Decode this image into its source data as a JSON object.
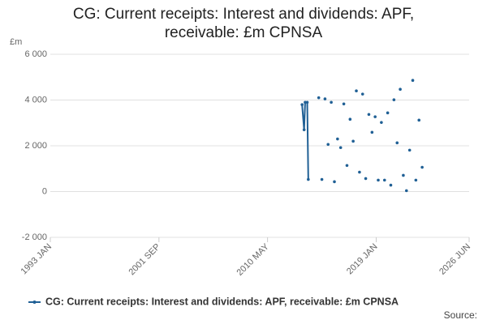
{
  "chart_data": {
    "type": "line",
    "title": "CG: Current receipts: Interest and dividends: APF, receivable: £m CPNSA",
    "y_unit": "£m",
    "source_label": "Source:",
    "x": [
      "2013 FEB",
      "2013 APR",
      "2013 MAY",
      "2013 JUL",
      "2013 AUG",
      "2013 SEP",
      "2014 JUN",
      "2014 JUL",
      "2014 SEP",
      "2014 OCT",
      "2014 DEC",
      "2015 JAN",
      "2015 MAR",
      "2015 APR",
      "2015 JUN",
      "2015 JUL",
      "2015 SEP",
      "2015 OCT",
      "2015 DEC",
      "2016 JAN",
      "2016 MAR",
      "2016 APR",
      "2016 JUN",
      "2016 JUL",
      "2016 SEP",
      "2016 OCT",
      "2016 DEC",
      "2017 JAN",
      "2017 MAR",
      "2017 APR",
      "2017 JUN",
      "2017 JUL",
      "2017 SEP",
      "2017 OCT",
      "2017 DEC",
      "2018 JAN",
      "2018 MAR",
      "2018 APR",
      "2018 JUN",
      "2018 JUL",
      "2018 SEP",
      "2018 OCT",
      "2018 DEC",
      "2019 JAN",
      "2019 MAR",
      "2019 APR",
      "2019 JUN",
      "2019 JUL",
      "2019 SEP",
      "2019 OCT",
      "2019 DEC",
      "2020 JAN",
      "2020 MAR",
      "2020 APR",
      "2020 JUN",
      "2020 JUL",
      "2020 SEP",
      "2020 OCT",
      "2020 DEC",
      "2021 JAN",
      "2021 MAR",
      "2021 APR",
      "2021 JUN",
      "2021 JUL",
      "2021 SEP",
      "2021 OCT",
      "2021 DEC",
      "2022 JAN",
      "2022 MAR",
      "2022 APR",
      "2022 JUN",
      "2022 JUL",
      "2022 SEP"
    ],
    "series": [
      {
        "name": "CG: Current receipts: Interest and dividends: APF, receivable: £m CPNSA",
        "color": "#206095",
        "values": [
          3800,
          2700,
          3900,
          3900,
          530,
          null,
          4100,
          null,
          530,
          null,
          4050,
          null,
          2060,
          null,
          3900,
          null,
          430,
          null,
          2300,
          null,
          1920,
          null,
          3830,
          null,
          1140,
          null,
          3160,
          null,
          2200,
          null,
          4400,
          null,
          850,
          null,
          4260,
          null,
          570,
          null,
          3370,
          null,
          2590,
          null,
          3270,
          null,
          500,
          null,
          3020,
          null,
          500,
          null,
          3440,
          null,
          280,
          null,
          4010,
          null,
          2130,
          null,
          4470,
          null,
          710,
          null,
          40,
          null,
          1810,
          null,
          4860,
          null,
          500,
          null,
          3120,
          null,
          1060
        ]
      }
    ],
    "xlim": [
      "1993 JAN",
      "2026 JUN"
    ],
    "xticks": [
      "1993 JAN",
      "2001 SEP",
      "2010 MAY",
      "2019 JAN",
      "2026 JUN"
    ],
    "ylim": [
      -2000,
      6000
    ],
    "yticks": [
      {
        "value": -2000,
        "label": "-2 000"
      },
      {
        "value": 0,
        "label": "0"
      },
      {
        "value": 2000,
        "label": "2 000"
      },
      {
        "value": 4000,
        "label": "4 000"
      },
      {
        "value": 6000,
        "label": "6 000"
      }
    ],
    "grid": true
  }
}
